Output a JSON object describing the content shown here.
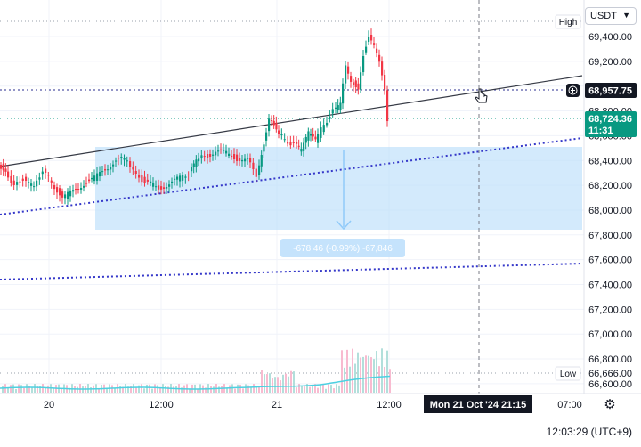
{
  "currency": {
    "label": "USDT",
    "chevron": "chevron-down-icon"
  },
  "price_axis": {
    "ticks": [
      "69,400.00",
      "69,200.00",
      "69,000.00",
      "68,800.00",
      "68,600.00",
      "68,400.00",
      "68,200.00",
      "68,000.00",
      "67,800.00",
      "67,600.00",
      "67,400.00",
      "67,200.00",
      "67,000.00",
      "66,800.00",
      "66,600.00"
    ],
    "high_tag": "High",
    "low_tag": "Low",
    "low_value": "66,666.00",
    "crosshair_price": "68,957.75",
    "last_price": "68,724.36",
    "countdown": "11:31",
    "colors": {
      "last_price_bg": "#089981",
      "crosshair_bg": "#131722",
      "up": "#089981",
      "down": "#f23645"
    }
  },
  "time_axis": {
    "ticks": [
      "20",
      "12:00",
      "21",
      "12:00",
      "07:00"
    ],
    "crosshair_label": "Mon 21 Oct '24   21:15"
  },
  "measure": {
    "label": "-678.46 (-0.99%) -67,846"
  },
  "clock": "12:03:29 (UTC+9)",
  "icons": {
    "plus": "plus-circle-icon",
    "cursor": "pointer-cursor-icon",
    "settings": "gear-icon"
  }
}
